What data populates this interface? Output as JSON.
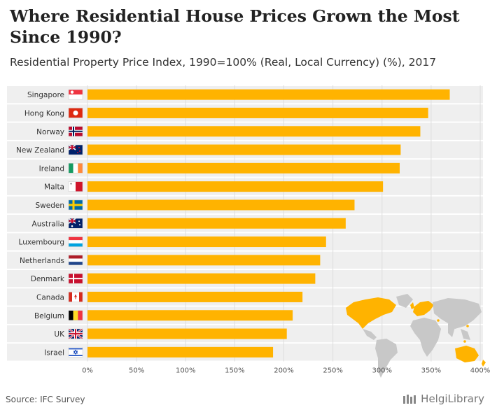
{
  "header": {
    "title": "Where Residential House Prices Grown the Most Since 1990?",
    "subtitle": "Residential Property Price Index, 1990=100% (Real, Local Currency) (%), 2017"
  },
  "footer": {
    "source": "Source: IFC Survey",
    "brand": "HelgiLibrary"
  },
  "colors": {
    "bar": "#FFB300",
    "row_band": "#EFEFEF",
    "grid": "#DDDDDD",
    "map_land": "#C8C8C8",
    "map_highlight": "#FFB300"
  },
  "chart_data": {
    "type": "bar",
    "orientation": "horizontal",
    "categories": [
      "Singapore",
      "Hong Kong",
      "Norway",
      "New Zealand",
      "Ireland",
      "Malta",
      "Sweden",
      "Australia",
      "Luxembourg",
      "Netherlands",
      "Denmark",
      "Canada",
      "Belgium",
      "UK",
      "Israel"
    ],
    "flags": [
      "flag-singapore-icon",
      "flag-hong-kong-icon",
      "flag-norway-icon",
      "flag-new-zealand-icon",
      "flag-ireland-icon",
      "flag-malta-icon",
      "flag-sweden-icon",
      "flag-australia-icon",
      "flag-luxembourg-icon",
      "flag-netherlands-icon",
      "flag-denmark-icon",
      "flag-canada-icon",
      "flag-belgium-icon",
      "flag-uk-icon",
      "flag-israel-icon"
    ],
    "values": [
      369,
      347,
      339,
      319,
      318,
      301,
      272,
      263,
      243,
      237,
      232,
      219,
      209,
      203,
      189
    ],
    "xlim": [
      0,
      400
    ],
    "xticks": [
      0,
      50,
      100,
      150,
      200,
      250,
      300,
      350,
      400
    ],
    "xtick_labels": [
      "0%",
      "50%",
      "100%",
      "150%",
      "200%",
      "250%",
      "300%",
      "350%",
      "400%"
    ],
    "grid": true,
    "legend": "none"
  }
}
